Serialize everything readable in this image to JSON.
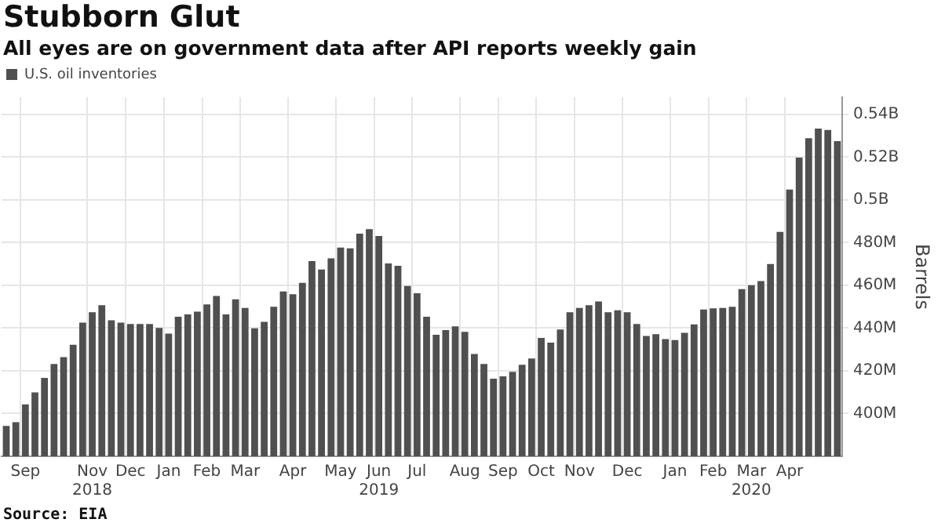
{
  "chart_data": {
    "type": "bar",
    "title": "Stubborn Glut",
    "subtitle": "All eyes are on government data after API reports weekly gain",
    "ylabel": "Barrels",
    "categories": [
      null,
      null,
      "Sep",
      null,
      null,
      null,
      null,
      null,
      null,
      "Nov\n2018",
      null,
      null,
      null,
      "Dec",
      null,
      null,
      null,
      "Jan",
      null,
      null,
      null,
      "Feb",
      null,
      null,
      null,
      "Mar",
      null,
      null,
      null,
      null,
      "Apr",
      null,
      null,
      null,
      null,
      "May",
      null,
      null,
      null,
      "Jun\n2019",
      null,
      null,
      null,
      "Jul",
      null,
      null,
      null,
      null,
      "Aug",
      null,
      null,
      null,
      "Sep",
      null,
      null,
      null,
      "Oct",
      null,
      null,
      null,
      "Nov",
      null,
      null,
      null,
      null,
      "Dec",
      null,
      null,
      null,
      null,
      "Jan",
      null,
      null,
      null,
      "Feb",
      null,
      null,
      null,
      "Mar\n2020",
      null,
      null,
      null,
      "Apr",
      null,
      null,
      null,
      null,
      null
    ],
    "series": [
      {
        "name": "U.S. oil inventories",
        "color": "#505050",
        "values": [
          394200000,
          396000000,
          404300000,
          409900000,
          416700000,
          423200000,
          426400000,
          432200000,
          442500000,
          447400000,
          450700000,
          443600000,
          442500000,
          441900000,
          441900000,
          441900000,
          440100000,
          437400000,
          445300000,
          446400000,
          447700000,
          451100000,
          455000000,
          446400000,
          453500000,
          449400000,
          439900000,
          442900000,
          450000000,
          457100000,
          455800000,
          461200000,
          471300000,
          467400000,
          472600000,
          477700000,
          477300000,
          484200000,
          486300000,
          483100000,
          470200000,
          469100000,
          459700000,
          456300000,
          445300000,
          436900000,
          439100000,
          440800000,
          438200000,
          427900000,
          423200000,
          416300000,
          417400000,
          419500000,
          422800000,
          425800000,
          435400000,
          433200000,
          439300000,
          447400000,
          449400000,
          450700000,
          452400000,
          447400000,
          448300000,
          447400000,
          441900000,
          436300000,
          437100000,
          434800000,
          434400000,
          437800000,
          441700000,
          448700000,
          449200000,
          449400000,
          450000000,
          458200000,
          460100000,
          462000000,
          470000000,
          485000000,
          504800000,
          519800000,
          528800000,
          533300000,
          532700000,
          527500000
        ]
      }
    ],
    "ylim": [
      380000000,
      548000000
    ],
    "yticks": [
      {
        "value": 400000000,
        "label": "400M"
      },
      {
        "value": 420000000,
        "label": "420M"
      },
      {
        "value": 440000000,
        "label": "440M"
      },
      {
        "value": 460000000,
        "label": "460M"
      },
      {
        "value": 480000000,
        "label": "480M"
      },
      {
        "value": 500000000,
        "label": "0.5B"
      },
      {
        "value": 520000000,
        "label": "0.52B"
      },
      {
        "value": 540000000,
        "label": "0.54B"
      }
    ],
    "grid": true,
    "legend": "top left",
    "annotations": [
      "Source: EIA"
    ]
  }
}
